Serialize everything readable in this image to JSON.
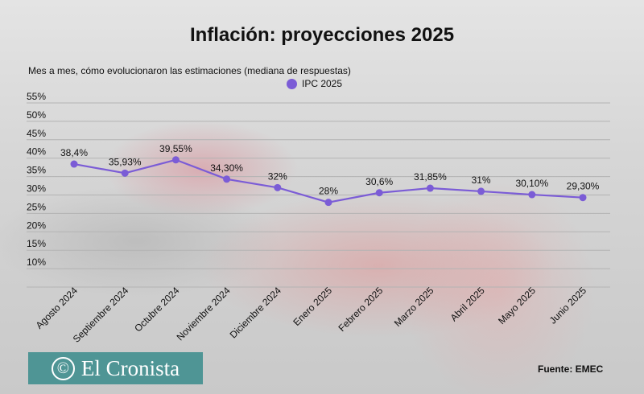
{
  "header": {
    "title": "Inflación: proyecciones 2025",
    "subtitle": "Mes a mes, cómo evolucionaron las estimaciones (mediana de respuestas)"
  },
  "footer": {
    "logo_text": "El Cronista",
    "logo_mark": "©",
    "source": "Fuente: EMEC"
  },
  "colors": {
    "series": "#7b5cd6",
    "logo_bg": "#4f9595"
  },
  "chart_data": {
    "type": "line",
    "title": "Inflación: proyecciones 2025",
    "subtitle": "Mes a mes, cómo evolucionaron las estimaciones (mediana de respuestas)",
    "xlabel": "",
    "ylabel": "",
    "categories": [
      "Agosto 2024",
      "Septiembre 2024",
      "Octubre 2024",
      "Noviembre 2024",
      "Diciembre 2024",
      "Enero 2025",
      "Febrero 2025",
      "Marzo 2025",
      "Abril 2025",
      "Mayo 2025",
      "Junio 2025"
    ],
    "series": [
      {
        "name": "IPC 2025",
        "values": [
          38.4,
          35.93,
          39.55,
          34.3,
          32,
          28,
          30.6,
          31.85,
          31,
          30.1,
          29.3
        ],
        "labels": [
          "38,4%",
          "35,93%",
          "39,55%",
          "34,30%",
          "32%",
          "28%",
          "30,6%",
          "31,85%",
          "31%",
          "30,10%",
          "29,30%"
        ]
      }
    ],
    "yticks": [
      10,
      15,
      20,
      25,
      30,
      35,
      40,
      45,
      50,
      55
    ],
    "ytick_labels": [
      "10%",
      "15%",
      "20%",
      "25%",
      "30%",
      "35%",
      "40%",
      "45%",
      "50%",
      "55%"
    ],
    "ylim": [
      5,
      55
    ],
    "grid": true,
    "legend": "top-center"
  }
}
